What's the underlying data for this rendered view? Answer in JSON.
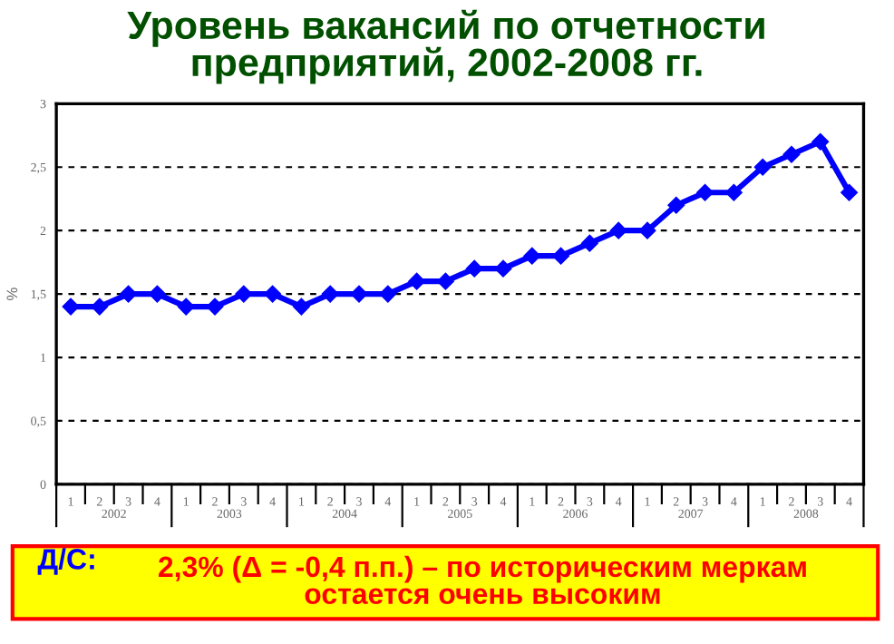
{
  "chart_data": {
    "type": "line",
    "title": "Уровень вакансий по отчетности\nпредприятий, 2002-2008 гг.",
    "ylabel": "%",
    "categories": [
      "1",
      "2",
      "3",
      "4",
      "1",
      "2",
      "3",
      "4",
      "1",
      "2",
      "3",
      "4",
      "1",
      "2",
      "3",
      "4",
      "1",
      "2",
      "3",
      "4",
      "1",
      "2",
      "3",
      "4",
      "1",
      "2",
      "3",
      "4"
    ],
    "series": [
      {
        "color": "#0000ff",
        "values": [
          1.4,
          1.4,
          1.5,
          1.5,
          1.4,
          1.4,
          1.5,
          1.5,
          1.4,
          1.5,
          1.5,
          1.5,
          1.6,
          1.6,
          1.7,
          1.7,
          1.8,
          1.8,
          1.9,
          2.0,
          2.0,
          2.2,
          2.3,
          2.3,
          2.5,
          2.6,
          2.7,
          2.3
        ]
      }
    ],
    "ylim": [
      0,
      3
    ],
    "yticks": [
      0,
      {
        "value": 0.5,
        "label": "0,5"
      },
      1,
      {
        "value": 1.5,
        "label": "1,5"
      },
      2,
      {
        "value": 2.5,
        "label": "2,5"
      },
      3
    ],
    "grid": "y",
    "marker": "diamond",
    "line_style": "solid",
    "legend": false,
    "annotations": [
      "Д/С:",
      "2,3% (Δ = -0,4 п.п.) – по историческим меркам\nостается очень высоким",
      "2002",
      "2003",
      "2004",
      "2005",
      "2006",
      "2007",
      "2008"
    ]
  }
}
